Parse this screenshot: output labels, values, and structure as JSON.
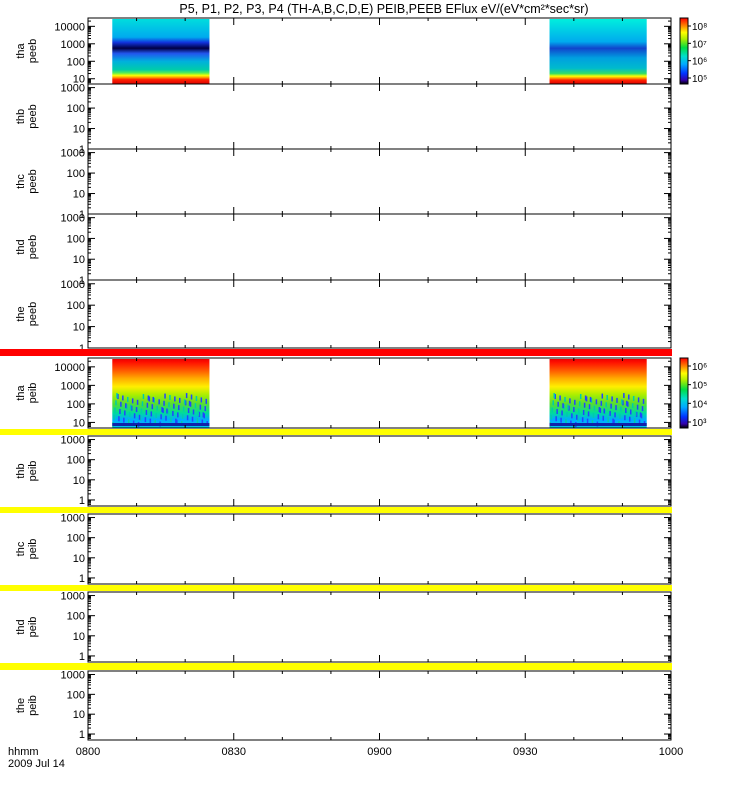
{
  "title": "P5, P1, P2, P3, P4 (TH-A,B,C,D,E) PEIB,PEEB EFlux eV/(eV*cm²*sec*sr)",
  "time_label": "hhmm",
  "date_label": "2009 Jul 14",
  "x_ticks": [
    "0800",
    "0830",
    "0900",
    "0930",
    "1000"
  ],
  "chart_data": [
    {
      "type": "heatmap",
      "probe": "tha",
      "quantity": "peeb",
      "ylabel": [
        "tha",
        "peeb"
      ],
      "y_ticks": [
        "10000",
        "1000",
        "100",
        "10"
      ],
      "yscale": "log",
      "ylim": [
        5,
        30000
      ],
      "xlim": [
        "08:00",
        "10:00"
      ],
      "colorbar": {
        "ticks": [
          "10⁸",
          "10⁷",
          "10⁶",
          "10⁵"
        ],
        "range": [
          100000,
          100000000
        ]
      },
      "data_intervals": [
        [
          "08:05",
          "08:25"
        ],
        [
          "09:35",
          "09:55"
        ]
      ],
      "status_bar": null
    },
    {
      "type": "heatmap",
      "probe": "thb",
      "quantity": "peeb",
      "ylabel": [
        "thb",
        "peeb"
      ],
      "y_ticks": [
        "1000",
        "100",
        "10",
        "1"
      ],
      "yscale": "log",
      "ylim": [
        1,
        1500
      ],
      "xlim": [
        "08:00",
        "10:00"
      ],
      "data_intervals": [],
      "status_bar": null
    },
    {
      "type": "heatmap",
      "probe": "thc",
      "quantity": "peeb",
      "ylabel": [
        "thc",
        "peeb"
      ],
      "y_ticks": [
        "1000",
        "100",
        "10",
        "1"
      ],
      "yscale": "log",
      "ylim": [
        1,
        1500
      ],
      "xlim": [
        "08:00",
        "10:00"
      ],
      "data_intervals": [],
      "status_bar": null
    },
    {
      "type": "heatmap",
      "probe": "thd",
      "quantity": "peeb",
      "ylabel": [
        "thd",
        "peeb"
      ],
      "y_ticks": [
        "1000",
        "100",
        "10",
        "1"
      ],
      "yscale": "log",
      "ylim": [
        1,
        1500
      ],
      "xlim": [
        "08:00",
        "10:00"
      ],
      "data_intervals": [],
      "status_bar": null
    },
    {
      "type": "heatmap",
      "probe": "the",
      "quantity": "peeb",
      "ylabel": [
        "the",
        "peeb"
      ],
      "y_ticks": [
        "1000",
        "100",
        "10",
        "1"
      ],
      "yscale": "log",
      "ylim": [
        1,
        1500
      ],
      "xlim": [
        "08:00",
        "10:00"
      ],
      "data_intervals": [],
      "status_bar": "#ff0000"
    },
    {
      "type": "heatmap",
      "probe": "tha",
      "quantity": "peib",
      "ylabel": [
        "tha",
        "peib"
      ],
      "y_ticks": [
        "10000",
        "1000",
        "100",
        "10"
      ],
      "yscale": "log",
      "ylim": [
        5,
        30000
      ],
      "xlim": [
        "08:00",
        "10:00"
      ],
      "colorbar": {
        "ticks": [
          "10⁶",
          "10⁵",
          "10⁴",
          "10³"
        ],
        "range": [
          1000,
          1000000
        ]
      },
      "data_intervals": [
        [
          "08:05",
          "08:25"
        ],
        [
          "09:35",
          "09:55"
        ]
      ],
      "status_bar": "#ffff00"
    },
    {
      "type": "heatmap",
      "probe": "thb",
      "quantity": "peib",
      "ylabel": [
        "thb",
        "peib"
      ],
      "y_ticks": [
        "1000",
        "100",
        "10",
        "1"
      ],
      "yscale": "log",
      "ylim": [
        0.5,
        1500
      ],
      "xlim": [
        "08:00",
        "10:00"
      ],
      "data_intervals": [],
      "status_bar": "#ffff00"
    },
    {
      "type": "heatmap",
      "probe": "thc",
      "quantity": "peib",
      "ylabel": [
        "thc",
        "peib"
      ],
      "y_ticks": [
        "1000",
        "100",
        "10",
        "1"
      ],
      "yscale": "log",
      "ylim": [
        0.5,
        1500
      ],
      "xlim": [
        "08:00",
        "10:00"
      ],
      "data_intervals": [],
      "status_bar": "#ffff00"
    },
    {
      "type": "heatmap",
      "probe": "thd",
      "quantity": "peib",
      "ylabel": [
        "thd",
        "peib"
      ],
      "y_ticks": [
        "1000",
        "100",
        "10",
        "1"
      ],
      "yscale": "log",
      "ylim": [
        0.5,
        1500
      ],
      "xlim": [
        "08:00",
        "10:00"
      ],
      "data_intervals": [],
      "status_bar": "#ffff00"
    },
    {
      "type": "heatmap",
      "probe": "the",
      "quantity": "peib",
      "ylabel": [
        "the",
        "peib"
      ],
      "y_ticks": [
        "1000",
        "100",
        "10",
        "1"
      ],
      "yscale": "log",
      "ylim": [
        0.5,
        1500
      ],
      "xlim": [
        "08:00",
        "10:00"
      ],
      "data_intervals": [],
      "status_bar": null
    }
  ]
}
